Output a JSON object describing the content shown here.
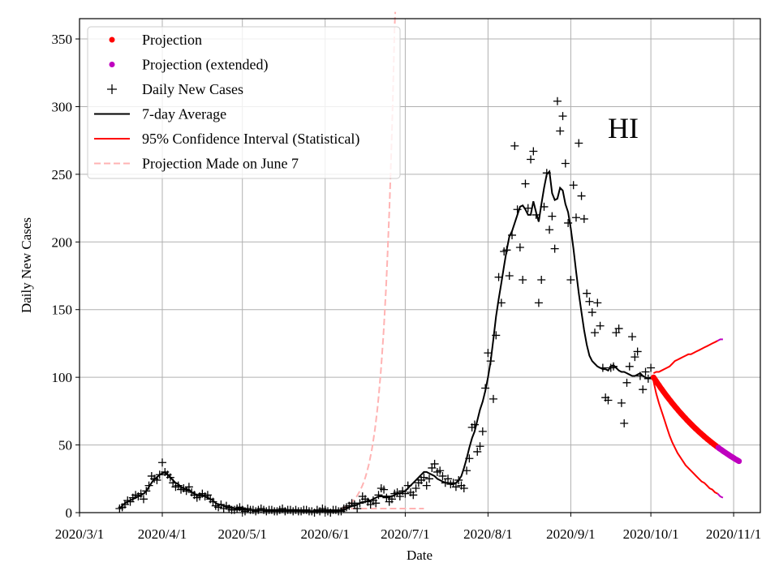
{
  "chart_data": {
    "type": "line",
    "region_label": "HI",
    "xlabel": "Date",
    "ylabel": "Daily New Cases",
    "ylim": [
      0,
      365
    ],
    "xlim": [
      "2020-03-01",
      "2020-11-11"
    ],
    "grid": true,
    "legend_position": "top-left",
    "x_tick_labels": [
      {
        "date": "2020-03-01",
        "label": "2020/3/1"
      },
      {
        "date": "2020-04-01",
        "label": "2020/4/1"
      },
      {
        "date": "2020-05-01",
        "label": "2020/5/1"
      },
      {
        "date": "2020-06-01",
        "label": "2020/6/1"
      },
      {
        "date": "2020-07-01",
        "label": "2020/7/1"
      },
      {
        "date": "2020-08-01",
        "label": "2020/8/1"
      },
      {
        "date": "2020-09-01",
        "label": "2020/9/1"
      },
      {
        "date": "2020-10-01",
        "label": "2020/10/1"
      },
      {
        "date": "2020-11-01",
        "label": "2020/11/1"
      }
    ],
    "y_ticks": [
      0,
      50,
      100,
      150,
      200,
      250,
      300,
      350
    ],
    "y_tick_labels": [
      "0",
      "50",
      "100",
      "150",
      "200",
      "250",
      "300",
      "350"
    ],
    "legend": [
      {
        "label": "Projection",
        "style": "dot",
        "color": "#ff0000"
      },
      {
        "label": "Projection (extended)",
        "style": "dot",
        "color": "#bf00bf"
      },
      {
        "label": "Daily New Cases",
        "style": "plus",
        "color": "#000000"
      },
      {
        "label": "7-day Average",
        "style": "line",
        "color": "#000000"
      },
      {
        "label": "95% Confidence Interval (Statistical)",
        "style": "line",
        "color": "#ff0000"
      },
      {
        "label": "Projection Made on June 7",
        "style": "dashed",
        "color": "#ffb3b3"
      }
    ],
    "colors": {
      "projection": "#ff0000",
      "extended": "#bf00bf",
      "cases": "#000000",
      "average": "#000000",
      "ci": "#ff0000",
      "june7": "#ffb3b3",
      "grid": "#b0b0b0"
    },
    "projection_start": "2020-10-02",
    "projection_end": "2020-10-26",
    "extended_end": "2020-11-03",
    "projection_value_start": 100,
    "projection_value_end": 38,
    "june7_projection": {
      "start": "2020-06-07",
      "start_value": 3,
      "doubling_days": 2.9,
      "baseline": 3,
      "baseline_end": "2020-07-08"
    },
    "daily_new_cases": {
      "start": "2020-03-16",
      "values": [
        3,
        4,
        6,
        9,
        8,
        11,
        13,
        12,
        14,
        10,
        16,
        20,
        27,
        25,
        24,
        28,
        37,
        30,
        28,
        26,
        22,
        19,
        20,
        17,
        18,
        16,
        19,
        15,
        13,
        11,
        12,
        14,
        12,
        13,
        10,
        8,
        5,
        4,
        6,
        3,
        5,
        3,
        2,
        2,
        3,
        4,
        2,
        1,
        3,
        2,
        2,
        1,
        2,
        3,
        2,
        1,
        2,
        2,
        1,
        1,
        2,
        3,
        1,
        2,
        2,
        1,
        2,
        1,
        1,
        2,
        2,
        1,
        1,
        0,
        2,
        1,
        3,
        2,
        1,
        0,
        2,
        2,
        1,
        1,
        3,
        4,
        5,
        7,
        6,
        3,
        7,
        12,
        10,
        8,
        6,
        9,
        7,
        13,
        18,
        17,
        11,
        8,
        10,
        14,
        15,
        12,
        16,
        14,
        20,
        15,
        13,
        18,
        22,
        24,
        26,
        20,
        25,
        33,
        36,
        30,
        31,
        27,
        22,
        25,
        21,
        22,
        19,
        24,
        20,
        18,
        31,
        40,
        63,
        65,
        45,
        49,
        60,
        92,
        118,
        112,
        84,
        131,
        174,
        155,
        193,
        194,
        175,
        205,
        271,
        224,
        196,
        172,
        243,
        225,
        261,
        267,
        220,
        155,
        172,
        226,
        251,
        209,
        219,
        195,
        304,
        282,
        293,
        258,
        214,
        172,
        242,
        218,
        273,
        234,
        217,
        162,
        156,
        148,
        133,
        155,
        138,
        107,
        85,
        83,
        107,
        108,
        133,
        136,
        81,
        66,
        96,
        108,
        130,
        115,
        119,
        101,
        91,
        104,
        99,
        107
      ]
    },
    "seven_day_average": {
      "start": "2020-03-16",
      "values": [
        3,
        5,
        7,
        8,
        9,
        10,
        11,
        12,
        13,
        14,
        16,
        19,
        22,
        25,
        26,
        28,
        29,
        30,
        28,
        26,
        24,
        22,
        21,
        19,
        18,
        17,
        17,
        15,
        14,
        13,
        13,
        13,
        12,
        11,
        10,
        9,
        7,
        6,
        6,
        5,
        4,
        4,
        4,
        3,
        3,
        3,
        3,
        3,
        2,
        2,
        2,
        2,
        2,
        2,
        2,
        2,
        2,
        2,
        2,
        2,
        2,
        2,
        2,
        2,
        2,
        2,
        2,
        2,
        1,
        1,
        1,
        1,
        1,
        1,
        1,
        1,
        1,
        1,
        1,
        1,
        1,
        1,
        1,
        2,
        2,
        3,
        4,
        5,
        5,
        6,
        7,
        8,
        8,
        9,
        9,
        10,
        11,
        12,
        12,
        12,
        12,
        12,
        12,
        13,
        14,
        14,
        15,
        16,
        18,
        20,
        22,
        24,
        26,
        28,
        30,
        30,
        29,
        28,
        27,
        25,
        24,
        23,
        22,
        22,
        21,
        21,
        22,
        24,
        27,
        33,
        40,
        48,
        55,
        60,
        68,
        76,
        82,
        90,
        100,
        112,
        128,
        145,
        158,
        170,
        182,
        194,
        204,
        208,
        214,
        220,
        226,
        227,
        224,
        220,
        220,
        230,
        222,
        215,
        228,
        240,
        250,
        252,
        236,
        231,
        232,
        240,
        238,
        228,
        222,
        210,
        195,
        178,
        162,
        148,
        135,
        124,
        116,
        112,
        110,
        108,
        107,
        106,
        106,
        105,
        108,
        109,
        107,
        105,
        104,
        104,
        103,
        102,
        101,
        101,
        102,
        103,
        101,
        100,
        99,
        100
      ]
    },
    "ci_upper": {
      "start": "2020-10-02",
      "values": [
        103,
        104,
        104,
        105,
        106,
        107,
        108,
        110,
        112,
        113,
        114,
        115,
        116,
        117,
        117,
        118,
        119,
        120,
        121,
        122,
        123,
        124,
        125,
        126,
        127,
        128,
        128
      ]
    },
    "ci_lower": {
      "start": "2020-10-02",
      "values": [
        97,
        88,
        81,
        75,
        69,
        63,
        57,
        52,
        48,
        44,
        41,
        38,
        35,
        33,
        31,
        29,
        27,
        25,
        23,
        22,
        20,
        18,
        17,
        15,
        14,
        12,
        11
      ]
    }
  }
}
